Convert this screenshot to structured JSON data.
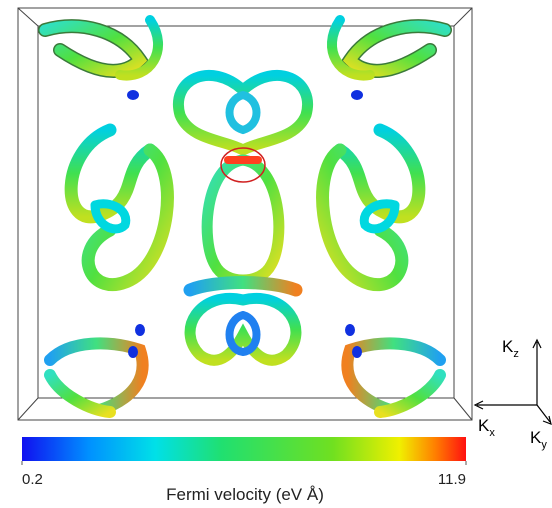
{
  "figure": {
    "colorbar": {
      "label": "Fermi velocity (eV Å)",
      "range": [
        0.2,
        11.9
      ],
      "ticks": [
        0.2,
        11.9
      ]
    },
    "axes": [
      {
        "base": "K",
        "sub": "z"
      },
      {
        "base": "K",
        "sub": "x"
      },
      {
        "base": "K",
        "sub": "y"
      }
    ]
  }
}
